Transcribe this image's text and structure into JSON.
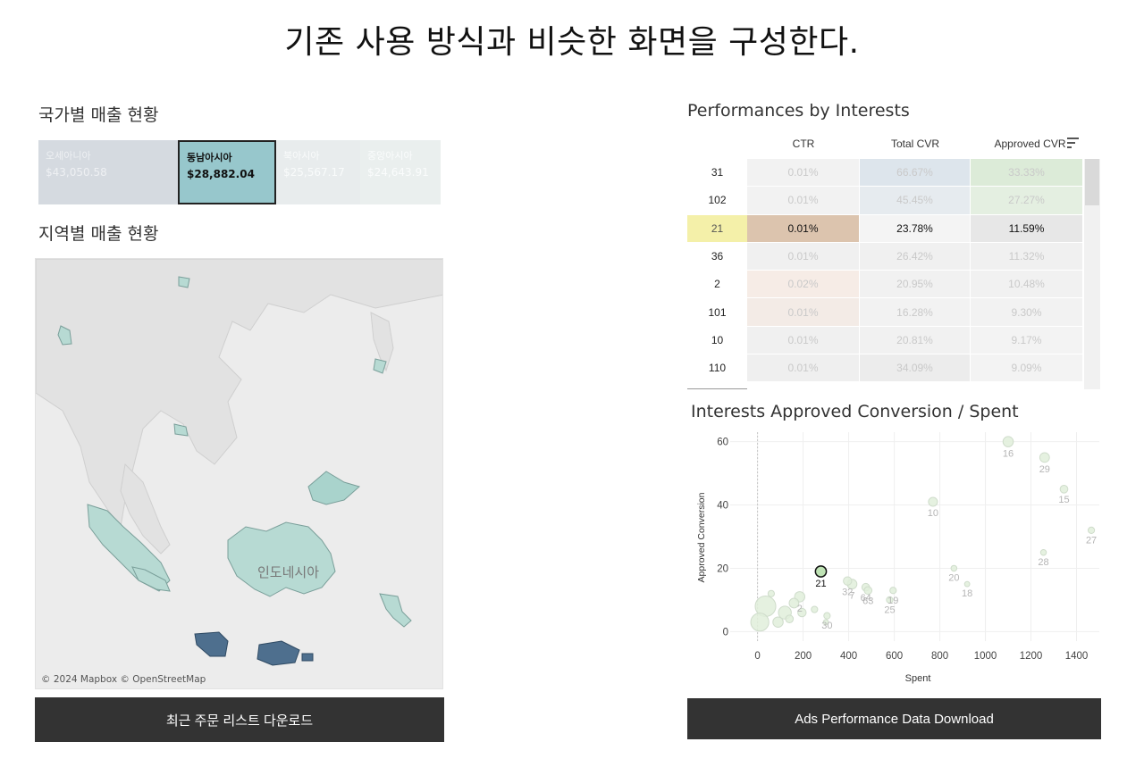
{
  "page": {
    "title": "기존 사용 방식과 비슷한 화면을 구성한다."
  },
  "left": {
    "country_title": "국가별 매출 현황",
    "region_title": "지역별 매출 현황",
    "treemap": [
      {
        "name": "오세아니아",
        "value": "$43,050.58"
      },
      {
        "name": "동남아시아",
        "value": "$28,882.04",
        "selected": true
      },
      {
        "name": "북아시아",
        "value": "$25,567.17"
      },
      {
        "name": "중앙아시아",
        "value": "$24,643.91"
      }
    ],
    "map": {
      "credit": "© 2024 Mapbox © OpenStreetMap",
      "label": "인도네시아"
    },
    "download_label": "최근 주문 리스트 다운로드"
  },
  "right": {
    "table_title": "Performances by Interests",
    "table": {
      "columns": [
        "CTR",
        "Total CVR",
        "Approved CVR"
      ],
      "rows": [
        {
          "id": "31",
          "ctr": "0.01%",
          "total_cvr": "66.67%",
          "approved_cvr": "33.33%"
        },
        {
          "id": "102",
          "ctr": "0.01%",
          "total_cvr": "45.45%",
          "approved_cvr": "27.27%"
        },
        {
          "id": "21",
          "ctr": "0.01%",
          "total_cvr": "23.78%",
          "approved_cvr": "11.59%"
        },
        {
          "id": "36",
          "ctr": "0.01%",
          "total_cvr": "26.42%",
          "approved_cvr": "11.32%"
        },
        {
          "id": "2",
          "ctr": "0.02%",
          "total_cvr": "20.95%",
          "approved_cvr": "10.48%"
        },
        {
          "id": "101",
          "ctr": "0.01%",
          "total_cvr": "16.28%",
          "approved_cvr": "9.30%"
        },
        {
          "id": "10",
          "ctr": "0.01%",
          "total_cvr": "20.81%",
          "approved_cvr": "9.17%"
        },
        {
          "id": "110",
          "ctr": "0.01%",
          "total_cvr": "34.09%",
          "approved_cvr": "9.09%"
        }
      ],
      "selected_id": "21"
    },
    "chart_title": "Interests Approved Conversion / Spent",
    "download_label": "Ads Performance Data Download"
  },
  "colors": {
    "selected_region": "#97c7cc",
    "java_region": "#4e6f8e",
    "highlight_row": "#f4f0a9",
    "bubble_fill": "#c9e4c2",
    "button_bg": "#333333"
  },
  "chart_data": {
    "type": "scatter",
    "title": "Interests Approved Conversion / Spent",
    "xlabel": "Spent",
    "ylabel": "Approved Conversion",
    "xlim": [
      -120,
      1500
    ],
    "ylim": [
      -3,
      63
    ],
    "xticks": [
      0,
      200,
      400,
      600,
      800,
      1000,
      1200,
      1400
    ],
    "yticks": [
      0,
      20,
      40,
      60
    ],
    "grid": true,
    "highlight": "21",
    "points": [
      {
        "label": "16",
        "x": 1100,
        "y": 60,
        "size": 1.6
      },
      {
        "label": "29",
        "x": 1260,
        "y": 55,
        "size": 1.5
      },
      {
        "label": "15",
        "x": 1345,
        "y": 45,
        "size": 1.2
      },
      {
        "label": "10",
        "x": 770,
        "y": 41,
        "size": 1.4
      },
      {
        "label": "27",
        "x": 1465,
        "y": 32,
        "size": 1.0
      },
      {
        "label": "28",
        "x": 1255,
        "y": 25,
        "size": 0.9
      },
      {
        "label": "21",
        "x": 278,
        "y": 19,
        "size": 1.7
      },
      {
        "label": "32",
        "x": 395,
        "y": 16,
        "size": 1.3
      },
      {
        "label": "64",
        "x": 475,
        "y": 14,
        "size": 1.2
      },
      {
        "label": "20",
        "x": 862,
        "y": 20,
        "size": 0.9
      },
      {
        "label": "18",
        "x": 920,
        "y": 15,
        "size": 0.8
      },
      {
        "label": "19",
        "x": 595,
        "y": 13,
        "size": 1.0
      },
      {
        "label": "7",
        "x": 415,
        "y": 15,
        "size": 1.5
      },
      {
        "label": "63",
        "x": 485,
        "y": 13,
        "size": 1.2
      },
      {
        "label": "25",
        "x": 580,
        "y": 10,
        "size": 1.0
      },
      {
        "label": "2",
        "x": 185,
        "y": 11,
        "size": 1.6
      },
      {
        "label": "30",
        "x": 305,
        "y": 5,
        "size": 1.0
      },
      {
        "label": "",
        "x": 35,
        "y": 8,
        "size": 3.2
      },
      {
        "label": "",
        "x": 10,
        "y": 3,
        "size": 2.8
      },
      {
        "label": "",
        "x": 120,
        "y": 6,
        "size": 2.0
      },
      {
        "label": "",
        "x": 90,
        "y": 3,
        "size": 1.6
      },
      {
        "label": "",
        "x": 160,
        "y": 9,
        "size": 1.5
      },
      {
        "label": "",
        "x": 250,
        "y": 7,
        "size": 1.0
      },
      {
        "label": "",
        "x": 300,
        "y": 3,
        "size": 0.8
      },
      {
        "label": "",
        "x": 140,
        "y": 4,
        "size": 1.2
      },
      {
        "label": "",
        "x": 60,
        "y": 12,
        "size": 1.0
      },
      {
        "label": "",
        "x": 195,
        "y": 6,
        "size": 1.3
      }
    ]
  }
}
